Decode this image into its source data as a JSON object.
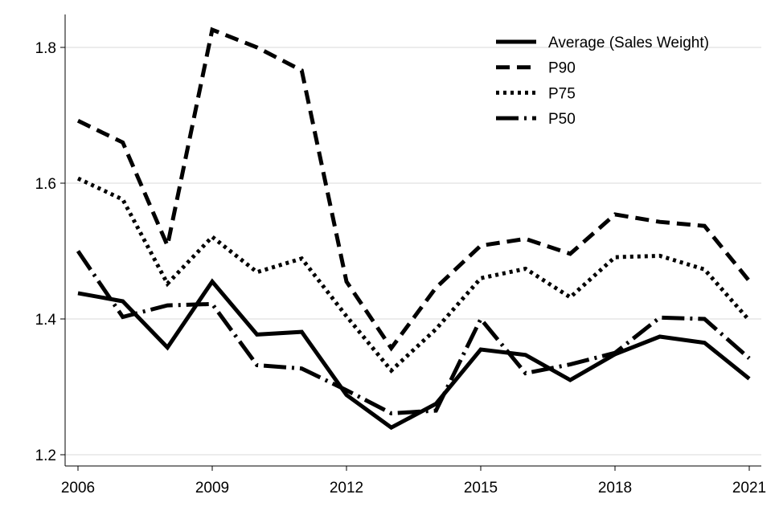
{
  "chart_data": {
    "type": "line",
    "title": "",
    "xlabel": "",
    "ylabel": "",
    "x": [
      2006,
      2007,
      2008,
      2009,
      2010,
      2011,
      2012,
      2013,
      2014,
      2015,
      2016,
      2017,
      2018,
      2019,
      2020,
      2021
    ],
    "xlim": [
      2006,
      2021
    ],
    "ylim": [
      1.2,
      1.84
    ],
    "xticks": [
      2006,
      2009,
      2012,
      2015,
      2018,
      2021
    ],
    "xtick_labels": [
      "2006",
      "2009",
      "2012",
      "2015",
      "2018",
      "2021"
    ],
    "yticks": [
      1.2,
      1.4,
      1.6,
      1.8
    ],
    "ytick_labels": [
      "1.2",
      "1.4",
      "1.6",
      "1.8"
    ],
    "grid": true,
    "legend_position": "top-right",
    "series": [
      {
        "name": "Average (Sales Weight)",
        "style": "solid",
        "color": "#000000",
        "values": [
          1.438,
          1.426,
          1.358,
          1.455,
          1.377,
          1.381,
          1.288,
          1.24,
          1.275,
          1.355,
          1.347,
          1.31,
          1.348,
          1.374,
          1.365,
          1.312
        ]
      },
      {
        "name": "P90",
        "style": "dashed",
        "color": "#000000",
        "values": [
          1.692,
          1.66,
          1.508,
          1.826,
          1.8,
          1.766,
          1.455,
          1.357,
          1.446,
          1.508,
          1.518,
          1.496,
          1.554,
          1.543,
          1.537,
          1.456
        ]
      },
      {
        "name": "P75",
        "style": "dotted",
        "color": "#000000",
        "values": [
          1.607,
          1.576,
          1.452,
          1.521,
          1.469,
          1.489,
          1.404,
          1.324,
          1.385,
          1.46,
          1.474,
          1.432,
          1.491,
          1.493,
          1.473,
          1.398
        ]
      },
      {
        "name": "P50",
        "style": "dashdot",
        "color": "#000000",
        "values": [
          1.5,
          1.403,
          1.42,
          1.422,
          1.332,
          1.327,
          1.295,
          1.261,
          1.265,
          1.4,
          1.32,
          1.333,
          1.35,
          1.402,
          1.4,
          1.342
        ]
      }
    ]
  }
}
